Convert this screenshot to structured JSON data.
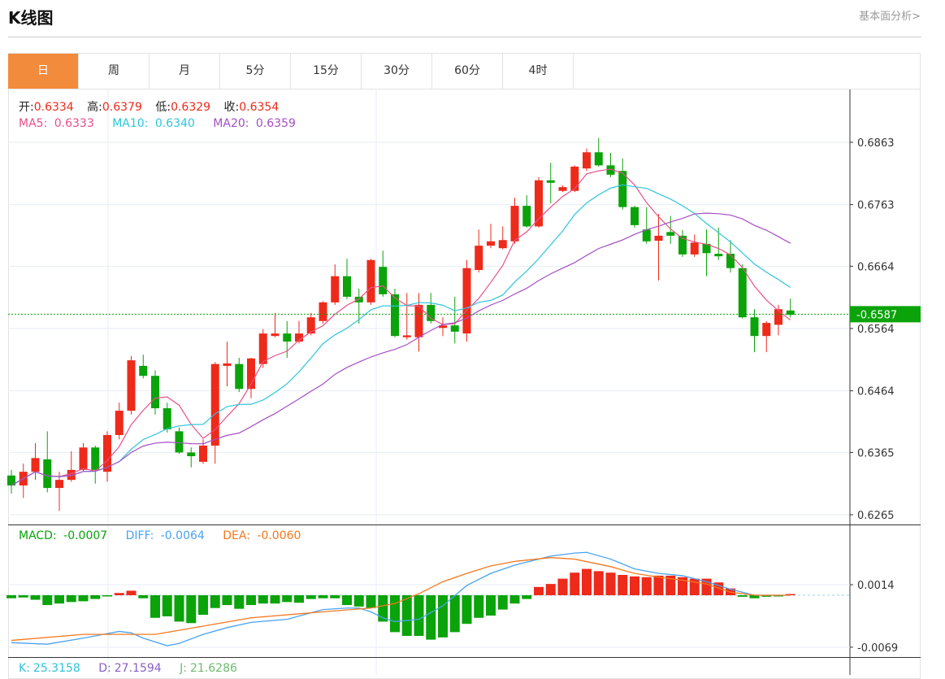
{
  "header": {
    "title": "K线图",
    "link": "基本面分析>"
  },
  "tabs": [
    {
      "label": "日",
      "active": true
    },
    {
      "label": "周"
    },
    {
      "label": "月"
    },
    {
      "label": "5分"
    },
    {
      "label": "15分"
    },
    {
      "label": "30分"
    },
    {
      "label": "60分"
    },
    {
      "label": "4时"
    }
  ],
  "info": {
    "open_label": "开:",
    "open": "0.6334",
    "high_label": "高:",
    "high": "0.6379",
    "low_label": "低:",
    "low": "0.6329",
    "close_label": "收:",
    "close": "0.6354",
    "ma5_label": "MA5:",
    "ma5": "0.6333",
    "ma10_label": "MA10:",
    "ma10": "0.6340",
    "ma20_label": "MA20:",
    "ma20": "0.6359"
  },
  "macd_info": {
    "macd_label": "MACD:",
    "macd": "-0.0007",
    "diff_label": "DIFF:",
    "diff": "-0.0064",
    "dea_label": "DEA:",
    "dea": "-0.0060"
  },
  "kdj_info": {
    "k_label": "K:",
    "k": "25.3158",
    "d_label": "D:",
    "d": "27.1594",
    "j_label": "J:",
    "j": "21.6286"
  },
  "colors": {
    "up": "#ee2a1b",
    "down": "#0aa30a",
    "ma5": "#e8508a",
    "ma10": "#2ec5dc",
    "ma20": "#a54fc4",
    "diff": "#4aa3f0",
    "dea": "#f5781e",
    "accent": "#f38b3c"
  },
  "chart_data": {
    "type": "candlestick",
    "price_axis": {
      "ticks": [
        "0.6863",
        "0.6763",
        "0.6664",
        "0.6564",
        "0.6464",
        "0.6365",
        "0.6265"
      ],
      "range": [
        0.6265,
        0.6863
      ]
    },
    "current_price": "0.6587",
    "macd_axis": {
      "ticks": [
        "0.0014",
        "-0.0069"
      ]
    },
    "ohlc": [
      [
        0.6328,
        0.6312,
        0.6337,
        0.6299
      ],
      [
        0.6312,
        0.6334,
        0.6347,
        0.6292
      ],
      [
        0.6334,
        0.6356,
        0.638,
        0.6321
      ],
      [
        0.6354,
        0.6308,
        0.6399,
        0.6301
      ],
      [
        0.6308,
        0.6321,
        0.6334,
        0.6271
      ],
      [
        0.6321,
        0.6337,
        0.6367,
        0.6318
      ],
      [
        0.6337,
        0.6373,
        0.638,
        0.6334
      ],
      [
        0.6373,
        0.6337,
        0.6376,
        0.6315
      ],
      [
        0.6334,
        0.6393,
        0.6399,
        0.6318
      ],
      [
        0.6393,
        0.6432,
        0.6445,
        0.6386
      ],
      [
        0.6432,
        0.6513,
        0.652,
        0.6426
      ],
      [
        0.6504,
        0.6488,
        0.6522,
        0.6484
      ],
      [
        0.6488,
        0.6436,
        0.6497,
        0.6426
      ],
      [
        0.6436,
        0.6402,
        0.6445,
        0.6397
      ],
      [
        0.6399,
        0.6365,
        0.6405,
        0.6363
      ],
      [
        0.6365,
        0.6359,
        0.6373,
        0.6341
      ],
      [
        0.635,
        0.6376,
        0.6386,
        0.6347
      ],
      [
        0.6376,
        0.6507,
        0.651,
        0.6347
      ],
      [
        0.6504,
        0.6508,
        0.6543,
        0.6471
      ],
      [
        0.6507,
        0.6467,
        0.6517,
        0.6462
      ],
      [
        0.6467,
        0.6516,
        0.6517,
        0.6452
      ],
      [
        0.6507,
        0.6556,
        0.6563,
        0.6501
      ],
      [
        0.6552,
        0.6556,
        0.6589,
        0.655
      ],
      [
        0.6556,
        0.6543,
        0.6576,
        0.6517
      ],
      [
        0.6543,
        0.6556,
        0.6576,
        0.654
      ],
      [
        0.6556,
        0.6582,
        0.6589,
        0.6553
      ],
      [
        0.6576,
        0.6606,
        0.6608,
        0.6572
      ],
      [
        0.6606,
        0.6648,
        0.6667,
        0.6602
      ],
      [
        0.6648,
        0.6615,
        0.6676,
        0.6611
      ],
      [
        0.6615,
        0.6606,
        0.6628,
        0.6572
      ],
      [
        0.6606,
        0.6674,
        0.6676,
        0.6602
      ],
      [
        0.6663,
        0.6619,
        0.6689,
        0.6615
      ],
      [
        0.6619,
        0.6552,
        0.6628,
        0.655
      ],
      [
        0.655,
        0.6553,
        0.6621,
        0.6546
      ],
      [
        0.655,
        0.6602,
        0.6621,
        0.6527
      ],
      [
        0.6602,
        0.6576,
        0.6621,
        0.6572
      ],
      [
        0.6565,
        0.6569,
        0.6582,
        0.6552
      ],
      [
        0.6569,
        0.6559,
        0.6615,
        0.654
      ],
      [
        0.6556,
        0.6661,
        0.6674,
        0.6543
      ],
      [
        0.6658,
        0.6697,
        0.6723,
        0.6654
      ],
      [
        0.6697,
        0.6704,
        0.6732,
        0.6693
      ],
      [
        0.6693,
        0.6706,
        0.6728,
        0.6691
      ],
      [
        0.6704,
        0.6761,
        0.6774,
        0.67
      ],
      [
        0.6761,
        0.6728,
        0.6778,
        0.6726
      ],
      [
        0.6728,
        0.6802,
        0.6807,
        0.6726
      ],
      [
        0.6802,
        0.6798,
        0.683,
        0.6765
      ],
      [
        0.6785,
        0.6791,
        0.6794,
        0.6783
      ],
      [
        0.6785,
        0.6824,
        0.6826,
        0.6783
      ],
      [
        0.6821,
        0.6847,
        0.6853,
        0.6817
      ],
      [
        0.6847,
        0.6826,
        0.687,
        0.6824
      ],
      [
        0.6826,
        0.6811,
        0.6846,
        0.6807
      ],
      [
        0.6817,
        0.6759,
        0.6837,
        0.6755
      ],
      [
        0.6759,
        0.673,
        0.6761,
        0.6726
      ],
      [
        0.6723,
        0.6704,
        0.6759,
        0.67
      ],
      [
        0.6705,
        0.6713,
        0.6748,
        0.6641
      ],
      [
        0.6719,
        0.6713,
        0.6745,
        0.67
      ],
      [
        0.6713,
        0.6683,
        0.6722,
        0.6679
      ],
      [
        0.6683,
        0.6702,
        0.6715,
        0.6679
      ],
      [
        0.67,
        0.6685,
        0.6723,
        0.6648
      ],
      [
        0.6684,
        0.668,
        0.6726,
        0.6674
      ],
      [
        0.6684,
        0.6661,
        0.6706,
        0.6654
      ],
      [
        0.6661,
        0.6582,
        0.6667,
        0.658
      ],
      [
        0.6582,
        0.6552,
        0.6595,
        0.6526
      ],
      [
        0.6552,
        0.6573,
        0.6576,
        0.6526
      ],
      [
        0.657,
        0.6595,
        0.6602,
        0.6553
      ],
      [
        0.6593,
        0.6586,
        0.6612,
        0.6582
      ]
    ],
    "macd_hist": [
      -0.0004,
      -0.0003,
      -0.0006,
      -0.0013,
      -0.0011,
      -0.0009,
      -0.0008,
      -0.0005,
      -0.0001,
      0.0003,
      0.0006,
      -0.0004,
      -0.003,
      -0.0028,
      -0.0035,
      -0.0037,
      -0.0026,
      -0.0017,
      -0.0013,
      -0.0018,
      -0.0013,
      -0.0011,
      -0.0011,
      -0.0009,
      -0.001,
      -0.0005,
      -0.0004,
      -0.0004,
      -0.0013,
      -0.0015,
      -0.0017,
      -0.0035,
      -0.0049,
      -0.0054,
      -0.0054,
      -0.0059,
      -0.0056,
      -0.0049,
      -0.0038,
      -0.003,
      -0.0027,
      -0.0019,
      -0.0011,
      -0.0005,
      0.0011,
      0.0015,
      0.0022,
      0.003,
      0.0035,
      0.0032,
      0.003,
      0.0027,
      0.0025,
      0.0024,
      0.0026,
      0.0026,
      0.0024,
      0.0022,
      0.0022,
      0.0017,
      0.0009,
      -0.0002,
      -0.0004,
      -0.0002,
      -0.0001,
      0.0
    ],
    "diff": [
      [
        0,
        -0.0063
      ],
      [
        3,
        -0.0065
      ],
      [
        6,
        -0.0057
      ],
      [
        9,
        -0.0048
      ],
      [
        10,
        -0.005
      ],
      [
        11,
        -0.0057
      ],
      [
        13,
        -0.0067
      ],
      [
        14,
        -0.0064
      ],
      [
        16,
        -0.0052
      ],
      [
        18,
        -0.0043
      ],
      [
        20,
        -0.0036
      ],
      [
        23,
        -0.0032
      ],
      [
        26,
        -0.0019
      ],
      [
        28,
        -0.0017
      ],
      [
        29,
        -0.0017
      ],
      [
        30,
        -0.0022
      ],
      [
        31,
        -0.003
      ],
      [
        32,
        -0.0035
      ],
      [
        34,
        -0.0032
      ],
      [
        36,
        -0.0014
      ],
      [
        38,
        0.0013
      ],
      [
        40,
        0.0029
      ],
      [
        42,
        0.004
      ],
      [
        45,
        0.0052
      ],
      [
        47,
        0.0056
      ],
      [
        48,
        0.0057
      ],
      [
        50,
        0.0048
      ],
      [
        52,
        0.0035
      ],
      [
        54,
        0.0029
      ],
      [
        56,
        0.0026
      ],
      [
        58,
        0.0018
      ],
      [
        60,
        0.0008
      ],
      [
        62,
        0.0
      ],
      [
        65,
        0.0
      ]
    ],
    "dea": [
      [
        0,
        -0.006
      ],
      [
        6,
        -0.0052
      ],
      [
        12,
        -0.0052
      ],
      [
        16,
        -0.0041
      ],
      [
        20,
        -0.003
      ],
      [
        26,
        -0.0022
      ],
      [
        30,
        -0.0017
      ],
      [
        32,
        -0.0011
      ],
      [
        34,
        0.0002
      ],
      [
        36,
        0.0018
      ],
      [
        38,
        0.0029
      ],
      [
        40,
        0.0039
      ],
      [
        42,
        0.0045
      ],
      [
        45,
        0.005
      ],
      [
        47,
        0.0048
      ],
      [
        50,
        0.0038
      ],
      [
        52,
        0.0029
      ],
      [
        54,
        0.0024
      ],
      [
        56,
        0.002
      ],
      [
        58,
        0.0015
      ],
      [
        60,
        0.0004
      ],
      [
        62,
        0.0
      ],
      [
        65,
        0.0
      ]
    ]
  }
}
